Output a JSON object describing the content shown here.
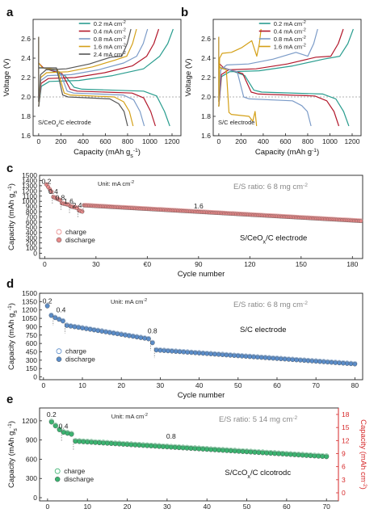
{
  "panels": {
    "a": {
      "label": "a",
      "chart_data": {
        "type": "line",
        "xlabel": "Capacity (mAh g",
        "xlabel_sub": "s",
        "xlabel_sup": "-1",
        "ylabel": "Voltage (V)",
        "xlim": [
          -50,
          1280
        ],
        "ylim": [
          1.6,
          2.8
        ],
        "xticks": [
          0,
          200,
          400,
          600,
          800,
          1000,
          1200
        ],
        "yticks": [
          1.6,
          1.8,
          2.0,
          2.2,
          2.4,
          2.6
        ],
        "annotation": "S/CeO",
        "annotation_sub": "x",
        "annotation_rest": "/C electrode",
        "legend_position": "top-left",
        "series": [
          {
            "name": "0.2 mA cm",
            "name_sup": "-2",
            "color": "#2a9d8f",
            "charge_end": 1210,
            "discharge_end": 1180,
            "upper": 2.16,
            "lower": 2.08
          },
          {
            "name": "0.4 mA cm",
            "name_sup": "-2",
            "color": "#b2182b",
            "charge_end": 1080,
            "discharge_end": 1050,
            "upper": 2.19,
            "lower": 2.06
          },
          {
            "name": "0.8 mA cm",
            "name_sup": "-2",
            "color": "#7b9bc8",
            "charge_end": 980,
            "discharge_end": 950,
            "upper": 2.22,
            "lower": 2.04
          },
          {
            "name": "1.6 mA cm",
            "name_sup": "-2",
            "color": "#d4a017",
            "charge_end": 880,
            "discharge_end": 850,
            "upper": 2.25,
            "lower": 2.02
          },
          {
            "name": "2.4 mA cm",
            "name_sup": "-2",
            "color": "#555555",
            "charge_end": 830,
            "discharge_end": 800,
            "upper": 2.28,
            "lower": 2.0
          }
        ]
      }
    },
    "b": {
      "label": "b",
      "chart_data": {
        "type": "line",
        "xlabel": "Capacity (mAh g",
        "xlabel_sup": "-1",
        "xlabel_end": ")",
        "ylabel": "Voltage (V)",
        "xlim": [
          -50,
          1280
        ],
        "ylim": [
          1.6,
          2.8
        ],
        "xticks": [
          0,
          200,
          400,
          600,
          800,
          1000,
          1200
        ],
        "yticks": [
          1.6,
          1.8,
          2.0,
          2.2,
          2.4,
          2.6
        ],
        "annotation": "S/C electrode",
        "legend_position": "top-left",
        "series": [
          {
            "name": "0.2 mA cm",
            "name_sup": "-2",
            "color": "#2a9d8f",
            "charge_end": 1210,
            "discharge_end": 1170,
            "upper": 2.26,
            "lower": 2.05
          },
          {
            "name": "0.4 mA cm",
            "name_sup": "-2",
            "color": "#b2182b",
            "charge_end": 1120,
            "discharge_end": 1080,
            "upper": 2.28,
            "lower": 2.03
          },
          {
            "name": "0.8 mA cm",
            "name_sup": "-2",
            "color": "#7b9bc8",
            "charge_end": 890,
            "discharge_end": 830,
            "upper": 2.33,
            "lower": 1.98
          },
          {
            "name": "1.6 mA cm",
            "name_sup": "-2",
            "color": "#d4a017",
            "charge_end": 380,
            "discharge_end": 340,
            "upper": 2.45,
            "lower": 1.82
          }
        ]
      }
    },
    "c": {
      "label": "c",
      "chart_data": {
        "type": "scatter",
        "xlabel": "Cycle number",
        "ylabel": "Capacity (mAh g",
        "ylabel_sub": "s",
        "ylabel_sup": "-1",
        "ylabel_end": ")",
        "xlim": [
          -3,
          186
        ],
        "ylim": [
          -100,
          1500
        ],
        "xticks": [
          "0",
          "30",
          "€0",
          "90",
          "120",
          "150",
          "180"
        ],
        "xtick_values": [
          0,
          30,
          60,
          90,
          120,
          150,
          180
        ],
        "yticks": [
          0,
          100,
          200,
          300,
          400,
          500,
          600,
          700,
          800,
          900,
          1000,
          1100,
          1200,
          1300,
          1400,
          1500
        ],
        "unit_text": "Unit: mA cm",
        "unit_sup": "-2",
        "ratio_text": "E/S ratio: 6     8 mg cm",
        "ratio_sup": "-2",
        "electrode_text": "S/CeO",
        "electrode_sub": "x",
        "electrode_rest": "/C electrode",
        "rate_labels": [
          {
            "text": "0.2",
            "x": 1,
            "y": 1340
          },
          {
            "text": "0.4",
            "x": 5,
            "y": 1140
          },
          {
            "text": "0.8",
            "x": 9,
            "y": 1030
          },
          {
            "text": "1.6",
            "x": 14,
            "y": 960
          },
          {
            "text": "2.4",
            "x": 19,
            "y": 880
          },
          {
            "text": "1.6",
            "x": 90,
            "y": 860
          }
        ],
        "legend": [
          "charge",
          "discharge"
        ],
        "color": "#e88a8a",
        "segments": [
          {
            "from": 1,
            "to": 4,
            "start": 1320,
            "end": 1180
          },
          {
            "from": 5,
            "to": 9,
            "start": 1080,
            "end": 1020
          },
          {
            "from": 10,
            "to": 14,
            "start": 960,
            "end": 930
          },
          {
            "from": 15,
            "to": 19,
            "start": 900,
            "end": 870
          },
          {
            "from": 20,
            "to": 22,
            "start": 820,
            "end": 800
          },
          {
            "from": 23,
            "to": 185,
            "start": 920,
            "end": 620
          }
        ]
      }
    },
    "d": {
      "label": "d",
      "chart_data": {
        "type": "scatter",
        "xlabel": "Cycle number",
        "ylabel": "Capacity (mAh g",
        "ylabel_sub": "s",
        "ylabel_sup": "-1",
        "ylabel_end": ")",
        "xlim": [
          -1,
          82
        ],
        "ylim": [
          -50,
          1500
        ],
        "xticks": [
          "0",
          "10",
          "20",
          "30",
          "40",
          "50",
          "60",
          "70",
          "80"
        ],
        "xtick_values": [
          0,
          10,
          20,
          30,
          40,
          50,
          60,
          70,
          80
        ],
        "yticks": [
          0,
          150,
          300,
          450,
          600,
          750,
          900,
          1050,
          1200,
          1350,
          1500
        ],
        "unit_text": "Unit: mA cm",
        "unit_sup": "-2",
        "ratio_text": "E/S ratio: 6     8 mg cm",
        "ratio_sup": "-2",
        "electrode_text": "S/C electrode",
        "rate_labels": [
          {
            "text": "0.2",
            "x": 1,
            "y": 1320
          },
          {
            "text": "0.4",
            "x": 4.5,
            "y": 1160
          },
          {
            "text": "0.8",
            "x": 28,
            "y": 780
          }
        ],
        "legend": [
          "charge",
          "discharge"
        ],
        "color": "#5b8dc9",
        "segments": [
          {
            "from": 1,
            "to": 2,
            "start": 1270,
            "end": 1100
          },
          {
            "from": 3,
            "to": 5,
            "start": 1060,
            "end": 1000
          },
          {
            "from": 6,
            "to": 27,
            "start": 920,
            "end": 680
          },
          {
            "from": 28,
            "to": 28,
            "start": 610,
            "end": 610
          },
          {
            "from": 29,
            "to": 80,
            "start": 480,
            "end": 230
          }
        ]
      }
    },
    "e": {
      "label": "e",
      "chart_data": {
        "type": "scatter",
        "xlabel": "Cycle number",
        "ylabel": "Capacity (mAh g",
        "ylabel_sub": "s",
        "ylabel_sup": "-1",
        "ylabel_end": ")",
        "ylabel_right": "Capacity (mAh cm",
        "ylabel_right_sup": "-2",
        "ylabel_right_end": ")",
        "xlim": [
          -2,
          73
        ],
        "ylim": [
          -50,
          1400
        ],
        "xticks": [
          "0",
          "10",
          "20",
          "30",
          "40",
          "50",
          "60",
          "70"
        ],
        "xtick_values": [
          0,
          10,
          20,
          30,
          40,
          50,
          60,
          70
        ],
        "yticks": [
          0,
          300,
          600,
          900,
          1200
        ],
        "yticks_right": [
          "0",
          "3",
          "6",
          "9",
          "12",
          "15",
          "18"
        ],
        "unit_text": "Unit: mA cm",
        "unit_sup": "-2",
        "ratio_text": "E/S ratio: 5    14 mg cm",
        "ratio_sup": "-2",
        "electrode_text": "S/CcO",
        "electrode_sub": "x",
        "electrode_rest": "/C clcotrodc",
        "rate_labels": [
          {
            "text": "0.2",
            "x": 1,
            "y": 1260
          },
          {
            "text": "0.4",
            "x": 4,
            "y": 1080
          },
          {
            "text": "0.8",
            "x": 31,
            "y": 920
          }
        ],
        "legend": [
          "charge",
          "discharge"
        ],
        "color": "#3cb371",
        "right_axis_color": "#d62728",
        "segments": [
          {
            "from": 1,
            "to": 3,
            "start": 1180,
            "end": 1060
          },
          {
            "from": 4,
            "to": 6,
            "start": 1020,
            "end": 990
          },
          {
            "from": 7,
            "to": 70,
            "start": 880,
            "end": 640
          }
        ]
      }
    }
  }
}
